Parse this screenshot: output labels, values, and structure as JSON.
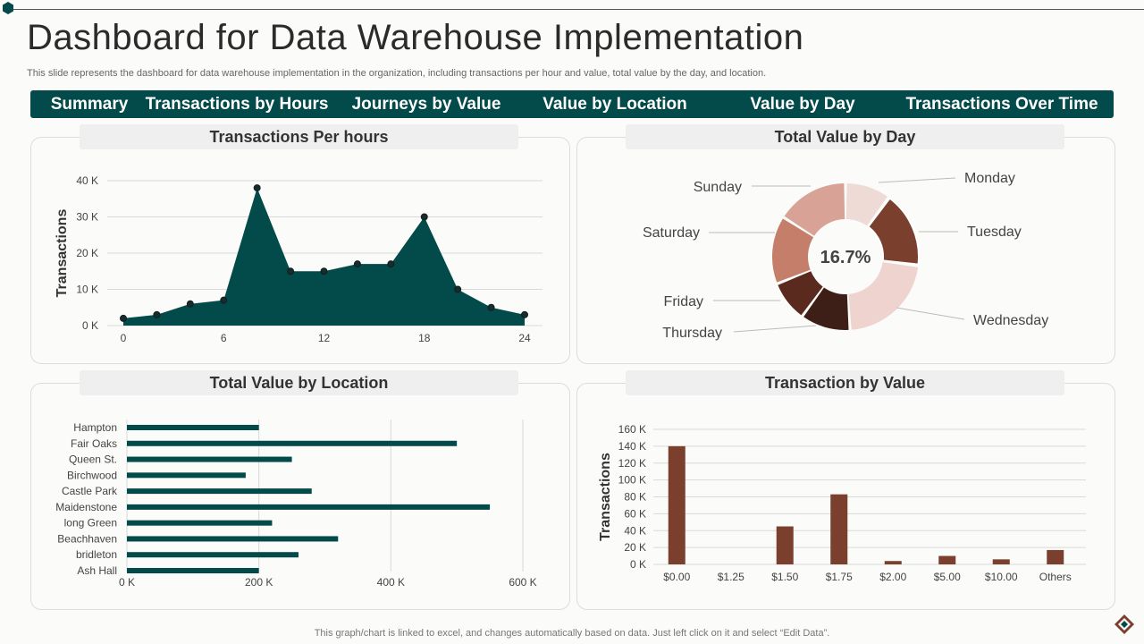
{
  "page": {
    "title": "Dashboard for Data Warehouse Implementation",
    "subtitle": "This slide represents the dashboard for data warehouse implementation in the organization, including transactions per hour and value, total value by the day,  and location.",
    "footer": "This graph/chart is linked to excel,  and changes automatically based on data. Just left click on it and select “Edit Data”."
  },
  "nav": {
    "items": [
      "Summary",
      "Transactions by Hours",
      "Journeys by Value",
      "Value by Location",
      "Value by Day",
      "Transactions Over Time"
    ]
  },
  "colors": {
    "teal": "#034a4a",
    "brown": "#7b3f2e",
    "donut": [
      "#eedbd6",
      "#7b3f2e",
      "#efd3cf",
      "#3e1f17",
      "#5a2a1e",
      "#c47e6a",
      "#d8a396"
    ]
  },
  "panels": {
    "tph_title": "Transactions Per hours",
    "tvd_title": "Total Value by Day",
    "tvl_title": "Total Value by Location",
    "tbv_title": "Transaction by Value"
  },
  "chart_data": [
    {
      "id": "transactions-per-hours",
      "type": "area",
      "title": "Transactions Per hours",
      "xlabel": "",
      "ylabel": "Transactions",
      "x": [
        0,
        2,
        4,
        6,
        8,
        10,
        12,
        14,
        16,
        18,
        20,
        22,
        24
      ],
      "values": [
        2,
        3,
        6,
        7,
        38,
        15,
        15,
        17,
        17,
        30,
        10,
        5,
        3
      ],
      "xticks": [
        "0",
        "6",
        "12",
        "18",
        "24"
      ],
      "xtick_values": [
        0,
        6,
        12,
        18,
        24
      ],
      "yticks": [
        "0 K",
        "10 K",
        "20 K",
        "30 K",
        "40 K"
      ],
      "ytick_values": [
        0,
        10,
        20,
        30,
        40
      ],
      "xlim": [
        0,
        24
      ],
      "ylim": [
        0,
        40
      ],
      "unit": "K"
    },
    {
      "id": "total-value-by-day",
      "type": "pie",
      "title": "Total Value by Day",
      "center_label": "16.7%",
      "categories": [
        "Monday",
        "Tuesday",
        "Wednesday",
        "Thursday",
        "Friday",
        "Saturday",
        "Sunday"
      ],
      "values": [
        10,
        17,
        22,
        11,
        9,
        15,
        16
      ]
    },
    {
      "id": "total-value-by-location",
      "type": "bar",
      "orientation": "horizontal",
      "title": "Total Value by Location",
      "categories": [
        "Hampton",
        "Fair Oaks",
        "Queen St.",
        "Birchwood",
        "Castle Park",
        "Maidenstone",
        "long Green",
        "Beachhaven",
        "bridleton",
        "Ash Hall"
      ],
      "values": [
        200,
        500,
        250,
        180,
        280,
        550,
        220,
        320,
        260,
        200
      ],
      "xticks": [
        "0 K",
        "200 K",
        "400 K",
        "600 K"
      ],
      "xtick_values": [
        0,
        200,
        400,
        600
      ],
      "xlim": [
        0,
        600
      ],
      "unit": "K"
    },
    {
      "id": "transaction-by-value",
      "type": "bar",
      "title": "Transaction by Value",
      "ylabel": "Transactions",
      "categories": [
        "$0.00",
        "$1.25",
        "$1.50",
        "$1.75",
        "$2.00",
        "$5.00",
        "$10.00",
        "Others"
      ],
      "values": [
        140,
        0,
        45,
        83,
        4,
        10,
        6,
        17
      ],
      "yticks": [
        "0 K",
        "20 K",
        "40 K",
        "60 K",
        "80 K",
        "100 K",
        "120 K",
        "140 K",
        "160 K"
      ],
      "ytick_values": [
        0,
        20,
        40,
        60,
        80,
        100,
        120,
        140,
        160
      ],
      "ylim": [
        0,
        160
      ],
      "unit": "K"
    }
  ]
}
